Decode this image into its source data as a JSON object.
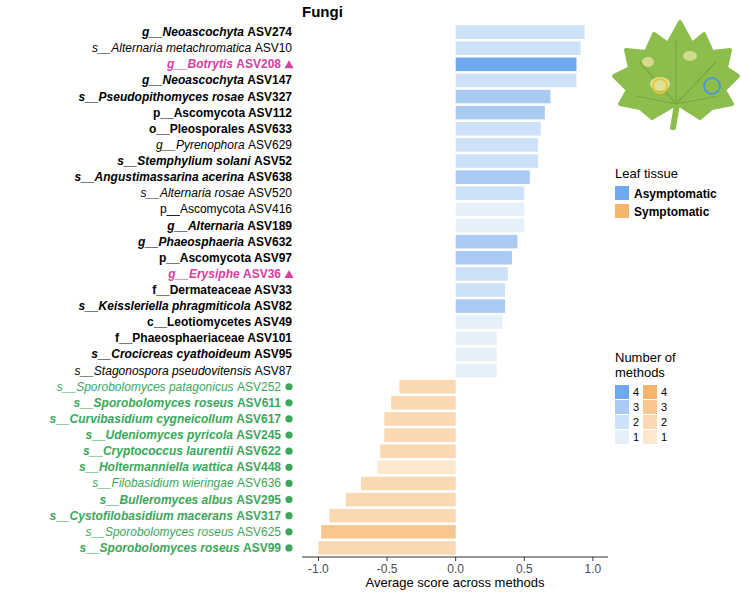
{
  "chart_data": {
    "type": "bar",
    "orientation": "horizontal",
    "title": "Fungi",
    "x_label": "Average score across methods",
    "categories": [
      "g__Neoascochyta ASV274",
      "s__Alternaria metachromatica ASV10",
      "g__Botrytis ASV208",
      "g__Neoascochyta ASV147",
      "s__Pseudopithomyces rosae ASV327",
      "p__Ascomycota ASV112",
      "o__Pleosporales ASV633",
      "g__Pyrenophora ASV629",
      "s__Stemphylium solani ASV52",
      "s__Angustimassarina acerina ASV638",
      "s__Alternaria rosae ASV520",
      "p__Ascomycota ASV416",
      "g__Alternaria ASV189",
      "g__Phaeosphaeria ASV632",
      "p__Ascomycota ASV97",
      "g__Erysiphe ASV36",
      "f__Dermateaceae ASV33",
      "s__Keissleriella phragmiticola ASV82",
      "c__Leotiomycetes ASV49",
      "f__Phaeosphaeriaceae ASV101",
      "s__Crocicreas cyathoideum ASV95",
      "s__Stagonospora pseudovitensis ASV87",
      "s__Sporobolomyces patagonicus ASV252",
      "s__Sporobolomyces roseus ASV611",
      "s__Curvibasidium cygneicollum ASV617",
      "s__Udeniomyces pyricola ASV245",
      "s__Cryptococcus laurentii ASV622",
      "s__Holtermanniella wattica ASV448",
      "s__Filobasidium wieringae ASV636",
      "s__Bulleromyces albus ASV295",
      "s__Cystofilobasidium macerans ASV317",
      "s__Sporobolomyces roseus ASV625",
      "s__Sporobolomyces roseus ASV99"
    ],
    "values": [
      0.94,
      0.91,
      0.88,
      0.88,
      0.69,
      0.65,
      0.62,
      0.6,
      0.6,
      0.54,
      0.5,
      0.5,
      0.5,
      0.45,
      0.41,
      0.38,
      0.36,
      0.36,
      0.34,
      0.3,
      0.3,
      0.3,
      -0.41,
      -0.47,
      -0.52,
      -0.52,
      -0.55,
      -0.57,
      -0.69,
      -0.8,
      -0.92,
      -0.98,
      -1.0
    ],
    "methods": [
      2,
      2,
      4,
      2,
      3,
      3,
      2,
      2,
      2,
      3,
      2,
      1,
      1,
      3,
      3,
      2,
      2,
      3,
      1,
      1,
      1,
      1,
      2,
      2,
      2,
      2,
      2,
      1,
      2,
      2,
      2,
      3,
      2
    ],
    "xlim": [
      -1.12,
      1.11
    ],
    "xticks": [
      {
        "value": -1,
        "label": "-1.0"
      },
      -0.5,
      {
        "value": 0,
        "label": "0.0"
      },
      0.5,
      {
        "value": 1,
        "label": "1.0"
      }
    ],
    "grid": false,
    "legend": "right",
    "legend_tissue": {
      "title": "Leaf tissue",
      "items": [
        {
          "label": "Asymptomatic",
          "color": "#6ea8ef"
        },
        {
          "label": "Symptomatic",
          "color": "#f6b46c"
        }
      ]
    },
    "legend_methods": {
      "title": "Number of methods",
      "levels": [
        4,
        3,
        2,
        1
      ],
      "asymptomatic_colors": [
        "#6ea8ef",
        "#a9cbf3",
        "#cde1f8",
        "#e6f0fb"
      ],
      "symptomatic_colors": [
        "#f6b46c",
        "#f8c78f",
        "#fad8b2",
        "#fbe8cf"
      ]
    }
  }
}
